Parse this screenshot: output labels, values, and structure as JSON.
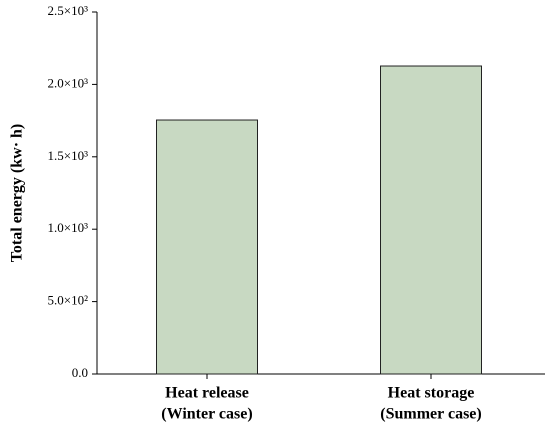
{
  "chart_data": {
    "type": "bar",
    "y_label": "Total energy (kw· h)",
    "categories": [
      [
        "Heat release",
        "(Winter case)"
      ],
      [
        "Heat storage",
        "(Summer case)"
      ]
    ],
    "values": [
      1754,
      2127
    ],
    "color": "#c8d9c2",
    "ylim": [
      0,
      2500
    ],
    "yticks": [
      {
        "value": 0,
        "label": "0.0"
      },
      {
        "value": 500,
        "label": "5.0×10²"
      },
      {
        "value": 1000,
        "label": "1.0×10³"
      },
      {
        "value": 1500,
        "label": "1.5×10³"
      },
      {
        "value": 2000,
        "label": "2.0×10³"
      },
      {
        "value": 2500,
        "label": "2.5×10³"
      }
    ],
    "grid": false
  }
}
